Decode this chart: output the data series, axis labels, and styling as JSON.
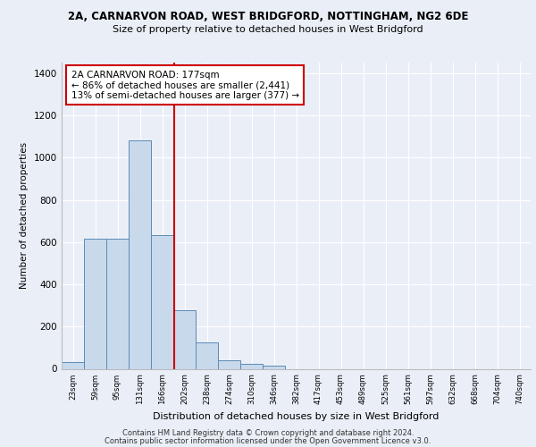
{
  "title1": "2A, CARNARVON ROAD, WEST BRIDGFORD, NOTTINGHAM, NG2 6DE",
  "title2": "Size of property relative to detached houses in West Bridgford",
  "xlabel": "Distribution of detached houses by size in West Bridgford",
  "ylabel": "Number of detached properties",
  "categories": [
    "23sqm",
    "59sqm",
    "95sqm",
    "131sqm",
    "166sqm",
    "202sqm",
    "238sqm",
    "274sqm",
    "310sqm",
    "346sqm",
    "382sqm",
    "417sqm",
    "453sqm",
    "489sqm",
    "525sqm",
    "561sqm",
    "597sqm",
    "632sqm",
    "668sqm",
    "704sqm",
    "740sqm"
  ],
  "values": [
    30,
    614,
    616,
    1082,
    635,
    278,
    125,
    42,
    25,
    15,
    0,
    0,
    0,
    0,
    0,
    0,
    0,
    0,
    0,
    0,
    0
  ],
  "bar_color": "#c9d9ec",
  "bar_edge_color": "#5b8ab5",
  "vline_x": 4.55,
  "vline_color": "#cc0000",
  "annotation_text": "2A CARNARVON ROAD: 177sqm\n← 86% of detached houses are smaller (2,441)\n13% of semi-detached houses are larger (377) →",
  "annotation_box_color": "#ffffff",
  "annotation_border_color": "#cc0000",
  "ylim": [
    0,
    1450
  ],
  "yticks": [
    0,
    200,
    400,
    600,
    800,
    1000,
    1200,
    1400
  ],
  "footer1": "Contains HM Land Registry data © Crown copyright and database right 2024.",
  "footer2": "Contains public sector information licensed under the Open Government Licence v3.0.",
  "bg_color": "#eaeff7",
  "plot_bg_color": "#eaeff7",
  "grid_color": "#ffffff"
}
